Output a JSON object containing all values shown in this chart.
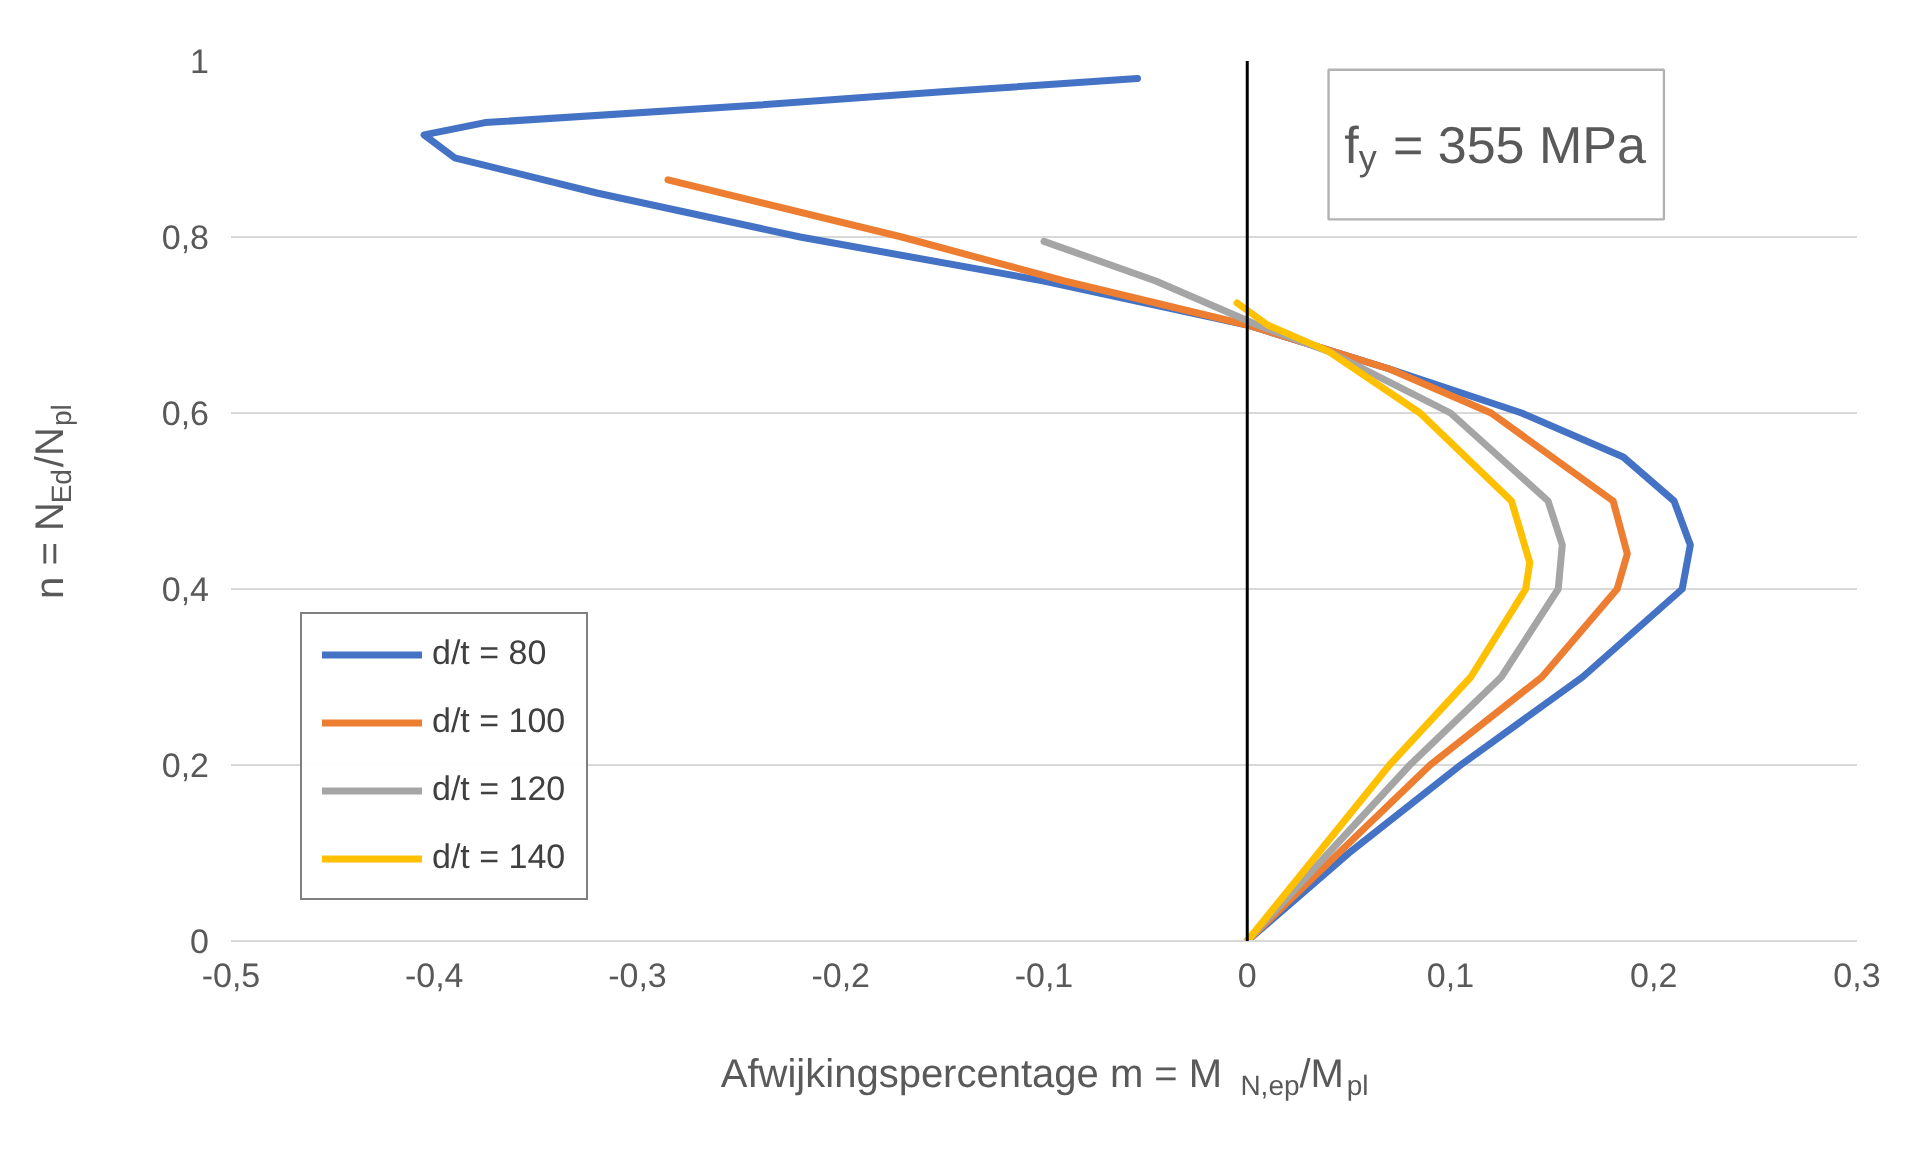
{
  "chart_data": {
    "type": "line",
    "xlabel": "Afwijkingspercentage m = M$_{N,ep}$/M$_{pl}$",
    "ylabel": "n = N$_{Ed}$/N$_{pl}$",
    "annotations": [
      "f$_{y}$ = 355 MPa"
    ],
    "xlim": [
      -0.5,
      0.3
    ],
    "ylim": [
      0,
      1
    ],
    "xticks": [
      {
        "value": -0.5,
        "label": "-0,5"
      },
      {
        "value": -0.4,
        "label": "-0,4"
      },
      {
        "value": -0.3,
        "label": "-0,3"
      },
      {
        "value": -0.2,
        "label": "-0,2"
      },
      {
        "value": -0.1,
        "label": "-0,1"
      },
      0,
      {
        "value": 0.1,
        "label": "0,1"
      },
      {
        "value": 0.2,
        "label": "0,2"
      },
      {
        "value": 0.3,
        "label": "0,3"
      }
    ],
    "yticks": [
      0,
      {
        "value": 0.2,
        "label": "0,2"
      },
      {
        "value": 0.4,
        "label": "0,4"
      },
      {
        "value": 0.6,
        "label": "0,6"
      },
      {
        "value": 0.8,
        "label": "0,8"
      },
      1
    ],
    "grid": "y",
    "legend": "left",
    "line_style": "solid",
    "marker": "none",
    "ref_lines": [
      {
        "axis": "x",
        "value": 0,
        "color": "#000000"
      }
    ],
    "series": [
      {
        "name": "d/t = 80",
        "color": "#4472c4",
        "x": [
          0,
          0.05,
          0.105,
          0.165,
          0.214,
          0.218,
          0.21,
          0.185,
          0.135,
          0.07,
          0.0,
          -0.1,
          -0.22,
          -0.32,
          -0.39,
          -0.405,
          -0.375,
          -0.24,
          -0.15,
          -0.054
        ],
        "values": [
          0,
          0.1,
          0.2,
          0.3,
          0.4,
          0.45,
          0.5,
          0.55,
          0.6,
          0.65,
          0.7,
          0.75,
          0.8,
          0.85,
          0.89,
          0.916,
          0.93,
          0.95,
          0.965,
          0.98
        ]
      },
      {
        "name": "d/t = 100",
        "color": "#ed7d31",
        "x": [
          0,
          0.045,
          0.09,
          0.145,
          0.182,
          0.187,
          0.18,
          0.12,
          0.07,
          0.0,
          -0.09,
          -0.17,
          -0.285
        ],
        "values": [
          0,
          0.1,
          0.2,
          0.3,
          0.4,
          0.44,
          0.5,
          0.6,
          0.65,
          0.7,
          0.75,
          0.8,
          0.865
        ]
      },
      {
        "name": "d/t = 120",
        "color": "#a5a5a5",
        "x": [
          0,
          0.04,
          0.08,
          0.125,
          0.153,
          0.155,
          0.148,
          0.1,
          0.04,
          0.005,
          -0.045,
          -0.1
        ],
        "values": [
          0,
          0.1,
          0.2,
          0.3,
          0.4,
          0.45,
          0.5,
          0.6,
          0.67,
          0.7,
          0.75,
          0.795
        ]
      },
      {
        "name": "d/t = 140",
        "color": "#ffc000",
        "x": [
          0,
          0.035,
          0.07,
          0.11,
          0.137,
          0.139,
          0.13,
          0.085,
          0.04,
          0.01,
          -0.005
        ],
        "values": [
          0,
          0.1,
          0.2,
          0.3,
          0.4,
          0.43,
          0.5,
          0.6,
          0.67,
          0.7,
          0.725
        ]
      }
    ]
  }
}
